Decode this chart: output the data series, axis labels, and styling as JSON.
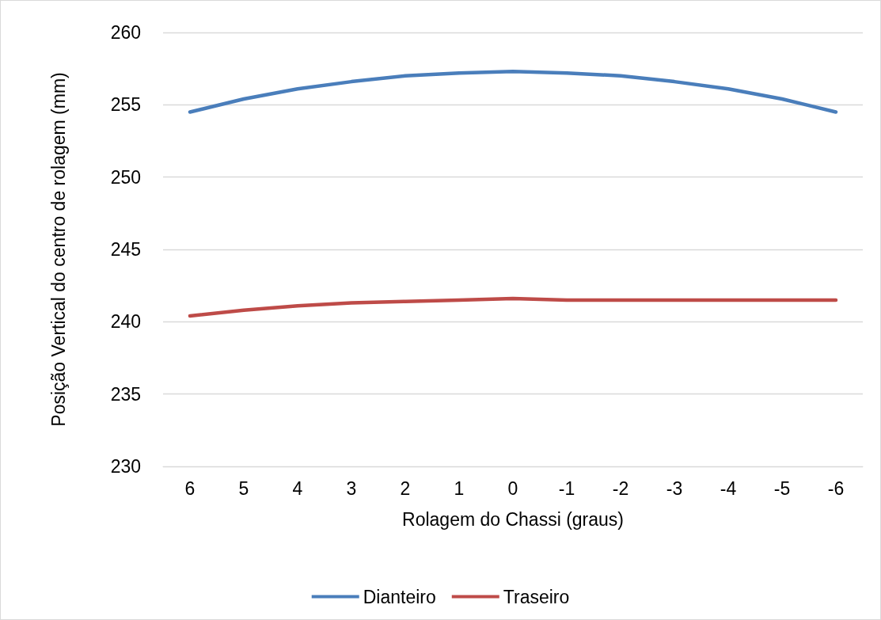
{
  "chart_data": {
    "type": "line",
    "xlabel": "Rolagem do Chassi (graus)",
    "ylabel": "Posição Vertical do centro de rolagem (mm)",
    "categories": [
      "6",
      "5",
      "4",
      "3",
      "2",
      "1",
      "0",
      "-1",
      "-2",
      "-3",
      "-4",
      "-5",
      "-6"
    ],
    "series": [
      {
        "name": "Dianteiro",
        "color": "#4a7ebb",
        "values": [
          254.5,
          255.4,
          256.1,
          256.6,
          257.0,
          257.2,
          257.3,
          257.2,
          257.0,
          256.6,
          256.1,
          255.4,
          254.5
        ]
      },
      {
        "name": "Traseiro",
        "color": "#be4b48",
        "values": [
          240.4,
          240.8,
          241.1,
          241.3,
          241.4,
          241.5,
          241.6,
          241.5,
          241.5,
          241.5,
          241.5,
          241.5,
          241.5
        ]
      }
    ],
    "ylim": [
      230,
      260
    ],
    "yticks": [
      230,
      235,
      240,
      245,
      250,
      255,
      260
    ],
    "grid": "y",
    "legend": "bottom",
    "marker": "none",
    "line_style": "solid"
  }
}
